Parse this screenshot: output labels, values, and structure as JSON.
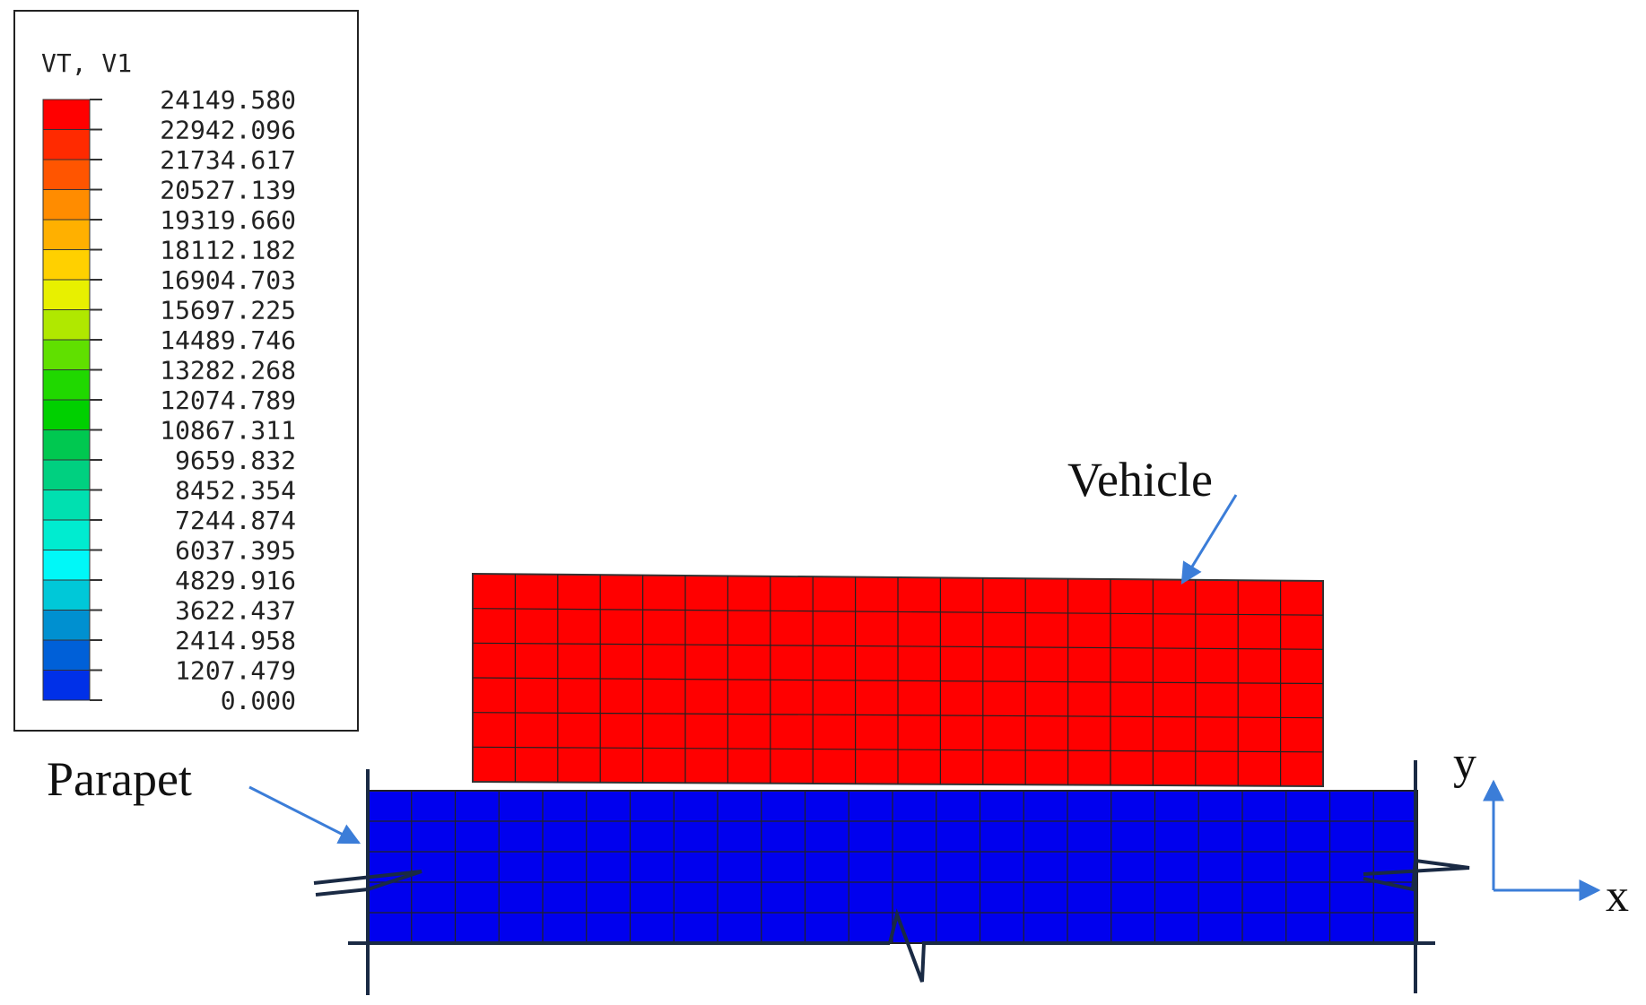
{
  "legend": {
    "title": "VT, V1",
    "values": [
      "24149.580",
      "22942.096",
      "21734.617",
      "20527.139",
      "19319.660",
      "18112.182",
      "16904.703",
      "15697.225",
      "14489.746",
      "13282.268",
      "12074.789",
      "10867.311",
      "9659.832",
      "8452.354",
      "7244.874",
      "6037.395",
      "4829.916",
      "3622.437",
      "2414.958",
      "1207.479",
      "0.000"
    ],
    "colors": [
      "#ff0000",
      "#ff2a00",
      "#ff5500",
      "#ff8c00",
      "#ffb000",
      "#ffd000",
      "#e8f000",
      "#b0e800",
      "#60e000",
      "#20d800",
      "#00d000",
      "#00c850",
      "#00d080",
      "#00e0b0",
      "#00ecd0",
      "#00f8f8",
      "#00c8d8",
      "#0090d0",
      "#0060d8",
      "#0030e8",
      "#0000ff"
    ]
  },
  "labels": {
    "vehicle": "Vehicle",
    "parapet": "Parapet"
  },
  "axes": {
    "x": "x",
    "y": "y"
  },
  "colors": {
    "vehicle_fill": "#ff0000",
    "parapet_fill": "#0000ee",
    "arrow": "#3b7dd8",
    "mesh": "#222222",
    "frame": "#1a2a44"
  }
}
